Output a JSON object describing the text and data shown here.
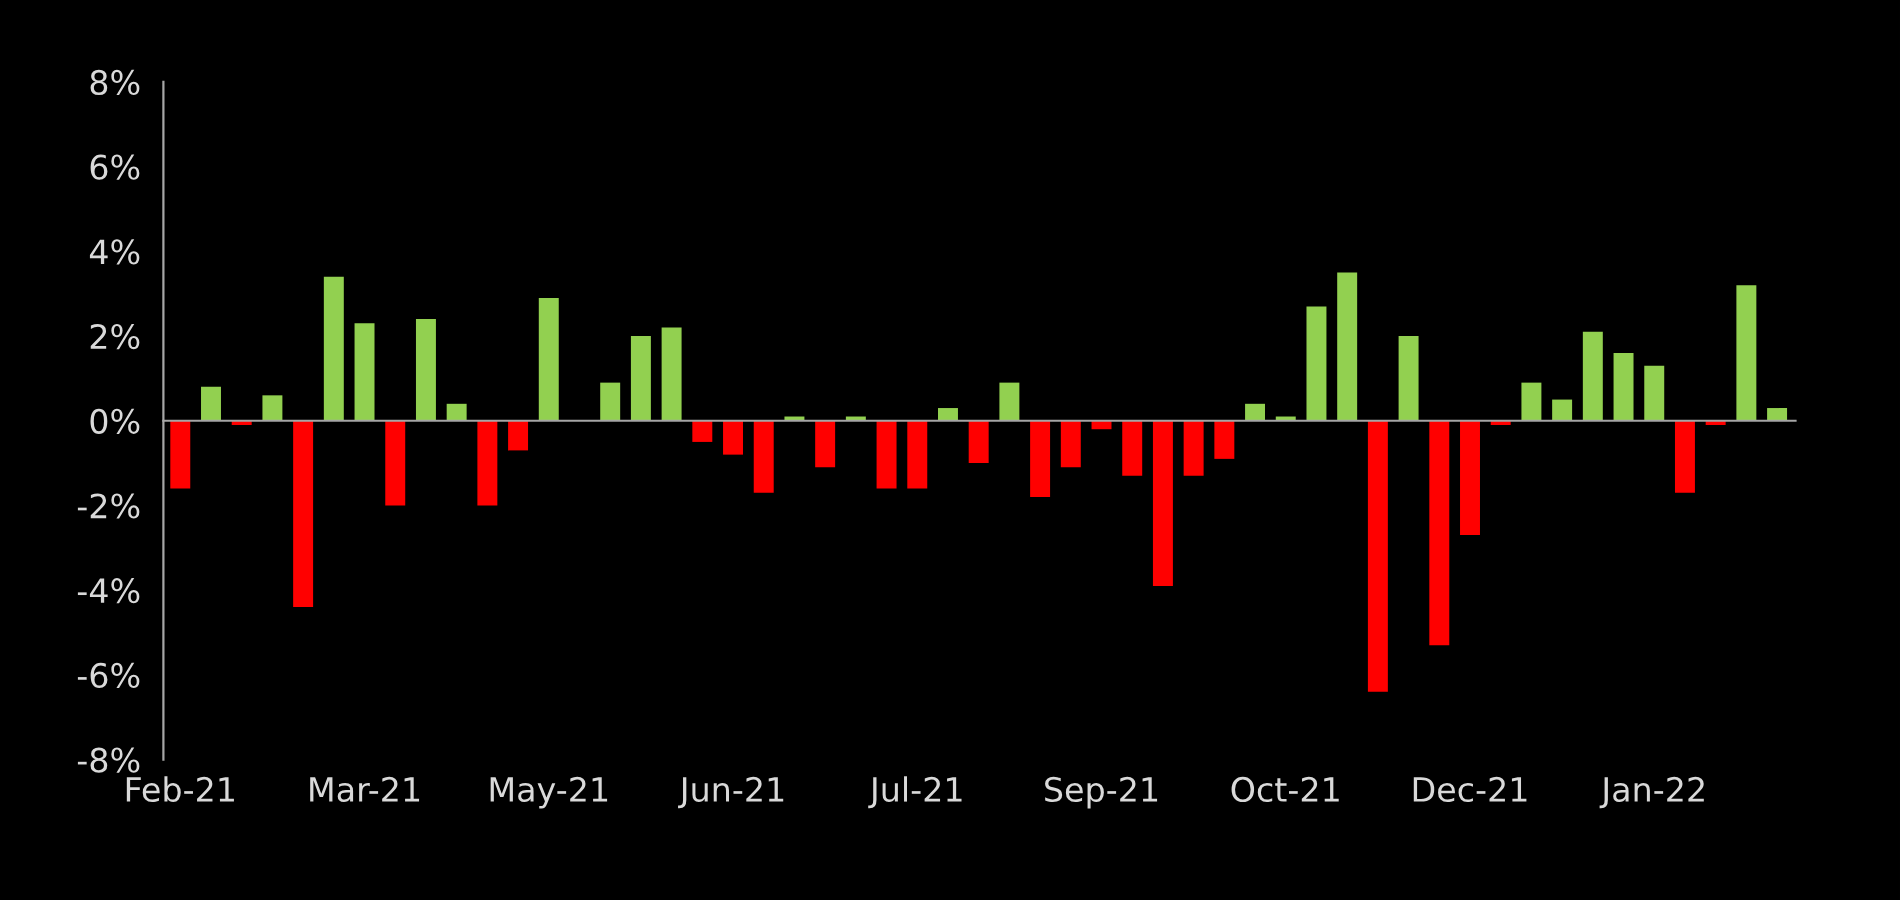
{
  "chart_data": {
    "type": "bar",
    "categories": [
      "Feb-21",
      null,
      null,
      null,
      null,
      null,
      "Mar-21",
      null,
      null,
      null,
      null,
      null,
      "May-21",
      null,
      null,
      null,
      null,
      null,
      "Jun-21",
      null,
      null,
      null,
      null,
      null,
      "Jul-21",
      null,
      null,
      null,
      null,
      null,
      "Sep-21",
      null,
      null,
      null,
      null,
      null,
      "Oct-21",
      null,
      null,
      null,
      null,
      null,
      "Dec-21",
      null,
      null,
      null,
      null,
      null,
      "Jan-22",
      null,
      null,
      null,
      null
    ],
    "values": [
      -1.6,
      0.8,
      -0.1,
      0.6,
      -4.4,
      3.4,
      2.3,
      -2.0,
      2.4,
      0.4,
      -2.0,
      -0.7,
      2.9,
      0,
      0.9,
      2.0,
      2.2,
      -0.5,
      -0.8,
      -1.7,
      0.1,
      -1.1,
      0.1,
      -1.6,
      -1.6,
      0.3,
      -1.0,
      0.9,
      -1.8,
      -1.1,
      -0.2,
      -1.3,
      -3.9,
      -1.3,
      -0.9,
      0.4,
      0.1,
      2.7,
      3.5,
      -6.4,
      2.0,
      -5.3,
      -2.7,
      -0.1,
      0.9,
      0.5,
      2.1,
      1.6,
      1.3,
      -1.7,
      -0.1,
      3.2,
      0.3
    ],
    "colors": [
      "#ff0000",
      "#92d050",
      "#ff0000",
      "#92d050",
      "#ff0000",
      "#92d050",
      "#92d050",
      "#ff0000",
      "#92d050",
      "#92d050",
      "#ff0000",
      "#ff0000",
      "#92d050",
      "#92d050",
      "#92d050",
      "#92d050",
      "#92d050",
      "#ff0000",
      "#ff0000",
      "#ff0000",
      "#92d050",
      "#ff0000",
      "#92d050",
      "#ff0000",
      "#ff0000",
      "#92d050",
      "#ff0000",
      "#92d050",
      "#ff0000",
      "#ff0000",
      "#ff0000",
      "#ff0000",
      "#ff0000",
      "#ff0000",
      "#ff0000",
      "#92d050",
      "#92d050",
      "#92d050",
      "#92d050",
      "#ff0000",
      "#92d050",
      "#ff0000",
      "#ff0000",
      "#ff0000",
      "#92d050",
      "#92d050",
      "#92d050",
      "#92d050",
      "#92d050",
      "#ff0000",
      "#ff0000",
      "#92d050",
      "#92d050"
    ],
    "ylim": [
      -8,
      8
    ],
    "yticks": [
      {
        "value": -8,
        "label": "-8%"
      },
      {
        "value": -6,
        "label": "-6%"
      },
      {
        "value": -4,
        "label": "-4%"
      },
      {
        "value": -2,
        "label": "-2%"
      },
      {
        "value": 0,
        "label": "0%"
      },
      {
        "value": 2,
        "label": "2%"
      },
      {
        "value": 4,
        "label": "4%"
      },
      {
        "value": 6,
        "label": "6%"
      },
      {
        "value": 8,
        "label": "8%"
      }
    ]
  }
}
